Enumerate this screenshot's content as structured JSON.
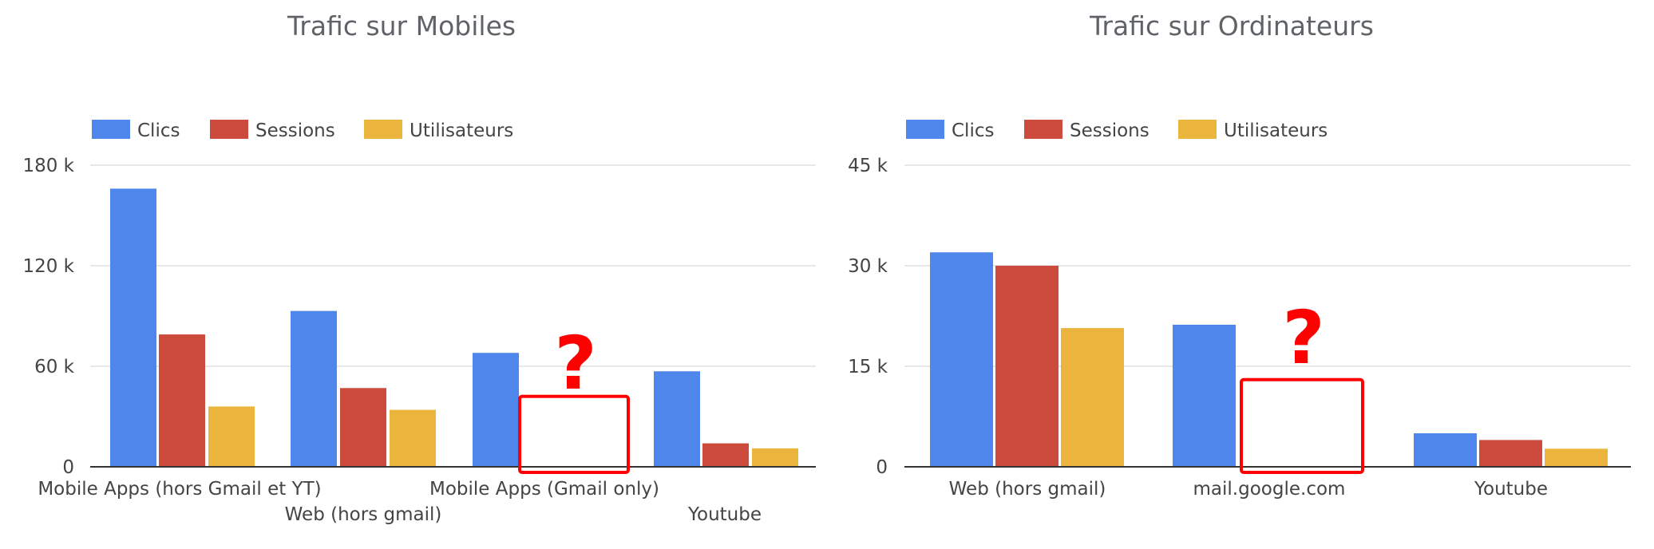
{
  "colors": {
    "clics": "#4f86ec",
    "sessions": "#cc4b3c",
    "utilisateurs": "#ebb43d",
    "highlight": "#ff0000"
  },
  "annotation": {
    "mark": "?"
  },
  "chart_data": [
    {
      "type": "bar",
      "title": "Trafic sur Mobiles",
      "legend_position": "top-left",
      "grid": true,
      "xlabel": "",
      "ylabel": "",
      "ylim": [
        0,
        180000
      ],
      "yticks": [
        0,
        60000,
        120000,
        180000
      ],
      "ytick_labels": [
        "0",
        "60 k",
        "120 k",
        "180 k"
      ],
      "categories": [
        "Mobile Apps (hors Gmail et YT)",
        "Web (hors gmail)",
        "Mobile Apps (Gmail only)",
        "Youtube"
      ],
      "series": [
        {
          "name": "Clics",
          "color": "#4f86ec",
          "values": [
            166000,
            93000,
            68000,
            57000
          ]
        },
        {
          "name": "Sessions",
          "color": "#cc4b3c",
          "values": [
            79000,
            47000,
            null,
            14000
          ]
        },
        {
          "name": "Utilisateurs",
          "color": "#ebb43d",
          "values": [
            36000,
            34000,
            null,
            11000
          ]
        }
      ],
      "highlighted_missing": {
        "category_index": 2,
        "series": [
          "Sessions",
          "Utilisateurs"
        ],
        "box_top_value": 42000
      }
    },
    {
      "type": "bar",
      "title": "Trafic sur Ordinateurs",
      "legend_position": "top-left",
      "grid": true,
      "xlabel": "",
      "ylabel": "",
      "ylim": [
        0,
        45000
      ],
      "yticks": [
        0,
        15000,
        30000,
        45000
      ],
      "ytick_labels": [
        "0",
        "15 k",
        "30 k",
        "45 k"
      ],
      "categories": [
        "Web (hors gmail)",
        "mail.google.com",
        "Youtube"
      ],
      "series": [
        {
          "name": "Clics",
          "color": "#4f86ec",
          "values": [
            32000,
            21200,
            5000
          ]
        },
        {
          "name": "Sessions",
          "color": "#cc4b3c",
          "values": [
            30000,
            null,
            4000
          ]
        },
        {
          "name": "Utilisateurs",
          "color": "#ebb43d",
          "values": [
            20700,
            null,
            2700
          ]
        }
      ],
      "highlighted_missing": {
        "category_index": 1,
        "series": [
          "Sessions",
          "Utilisateurs"
        ],
        "box_top_value": 13000
      }
    }
  ]
}
